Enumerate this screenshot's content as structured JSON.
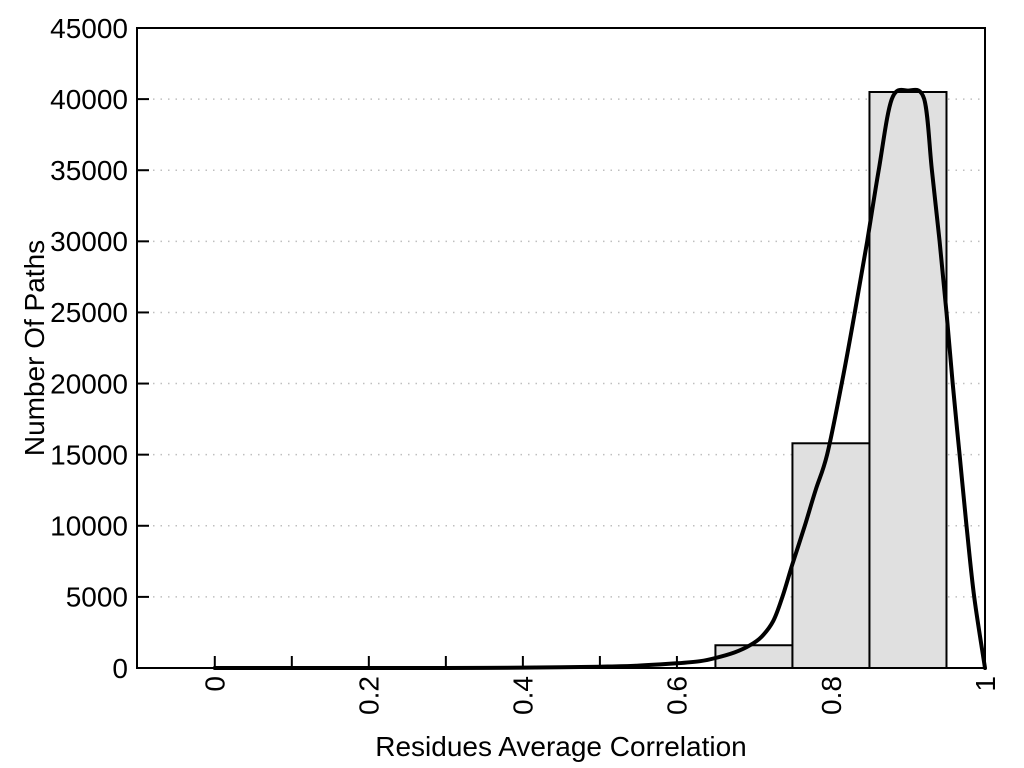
{
  "chart_data": {
    "type": "histogram",
    "title": "",
    "xlabel": "Residues Average Correlation",
    "ylabel": "Number Of Paths",
    "xlim": [
      -0.101,
      1.0
    ],
    "ylim": [
      0,
      45000
    ],
    "legend": null,
    "grid": {
      "show": true,
      "style": "dotted",
      "color": "#bfbfbf",
      "axis": "y"
    },
    "frame_color": "#000000",
    "x_ticks": [
      {
        "value": 0,
        "label": "0"
      },
      {
        "value": 0.1,
        "label": ""
      },
      {
        "value": 0.2,
        "label": "0.2"
      },
      {
        "value": 0.3,
        "label": ""
      },
      {
        "value": 0.4,
        "label": "0.4"
      },
      {
        "value": 0.5,
        "label": ""
      },
      {
        "value": 0.6,
        "label": "0.6"
      },
      {
        "value": 0.7,
        "label": ""
      },
      {
        "value": 0.8,
        "label": "0.8"
      },
      {
        "value": 0.9,
        "label": ""
      },
      {
        "value": 1.0,
        "label": "1"
      }
    ],
    "y_ticks": [
      {
        "value": 0,
        "label": "0"
      },
      {
        "value": 5000,
        "label": "5000"
      },
      {
        "value": 10000,
        "label": "10000"
      },
      {
        "value": 15000,
        "label": "15000"
      },
      {
        "value": 20000,
        "label": "20000"
      },
      {
        "value": 25000,
        "label": "25000"
      },
      {
        "value": 30000,
        "label": "30000"
      },
      {
        "value": 35000,
        "label": "35000"
      },
      {
        "value": 40000,
        "label": "40000"
      },
      {
        "value": 45000,
        "label": "45000"
      }
    ],
    "histogram": {
      "fill": "#e0e0e0",
      "stroke": "#000000",
      "bin_width": 0.1,
      "bins": [
        {
          "x_start": 0.65,
          "x_end": 0.75,
          "count": 1600
        },
        {
          "x_start": 0.75,
          "x_end": 0.85,
          "count": 15800
        },
        {
          "x_start": 0.85,
          "x_end": 0.95,
          "count": 40500
        }
      ]
    },
    "curve": {
      "color": "#000000",
      "width": 4,
      "peak": {
        "x": 0.9,
        "y": 40600
      },
      "points": [
        [
          0.0,
          0
        ],
        [
          0.05,
          0
        ],
        [
          0.1,
          0
        ],
        [
          0.15,
          0
        ],
        [
          0.2,
          0
        ],
        [
          0.25,
          0
        ],
        [
          0.3,
          0
        ],
        [
          0.35,
          10
        ],
        [
          0.4,
          25
        ],
        [
          0.45,
          50
        ],
        [
          0.5,
          90
        ],
        [
          0.55,
          170
        ],
        [
          0.6,
          330
        ],
        [
          0.63,
          480
        ],
        [
          0.65,
          700
        ],
        [
          0.675,
          1100
        ],
        [
          0.695,
          1600
        ],
        [
          0.71,
          2200
        ],
        [
          0.725,
          3300
        ],
        [
          0.737,
          5000
        ],
        [
          0.75,
          7300
        ],
        [
          0.766,
          10000
        ],
        [
          0.78,
          12500
        ],
        [
          0.795,
          15000
        ],
        [
          0.814,
          20000
        ],
        [
          0.831,
          25000
        ],
        [
          0.847,
          30000
        ],
        [
          0.862,
          35000
        ],
        [
          0.879,
          40000
        ],
        [
          0.9,
          40600
        ],
        [
          0.921,
          40000
        ],
        [
          0.931,
          35000
        ],
        [
          0.941,
          30000
        ],
        [
          0.95,
          25000
        ],
        [
          0.958,
          20000
        ],
        [
          0.967,
          15000
        ],
        [
          0.976,
          10000
        ],
        [
          0.986,
          5000
        ],
        [
          1.0,
          0
        ]
      ]
    }
  }
}
